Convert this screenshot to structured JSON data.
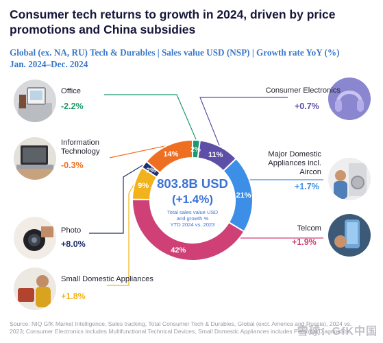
{
  "title": "Consumer tech returns to growth in 2024, driven by price promotions and China subsidies",
  "subtitle_line1": "Global (ex. NA, RU) Tech & Durables | Sales value USD (NSP) | Growth rate YoY (%)",
  "subtitle_line2": "Jan. 2024–Dec. 2024",
  "center": {
    "value": "803.8B USD",
    "growth": "(+1.4%)",
    "note1": "Total sales value USD",
    "note2": "and growth %",
    "note3": "YTD 2024 vs. 2023"
  },
  "categories": {
    "office": {
      "name": "Office",
      "growth": "-2.2%",
      "share_label": "2%"
    },
    "consumer_electronics": {
      "name": "Consumer Electronics",
      "growth": "+0.7%",
      "share_label": "11%"
    },
    "information_technology": {
      "name_line1": "Information",
      "name_line2": "Technology",
      "growth": "-0.3%",
      "share_label": "14%"
    },
    "major_domestic": {
      "name_line1": "Major Domestic",
      "name_line2": "Appliances incl.",
      "name_line3": "Aircon",
      "growth": "+1.7%",
      "share_label": "21%"
    },
    "photo": {
      "name": "Photo",
      "growth": "+8.0%",
      "share_label": "2%"
    },
    "telcom": {
      "name": "Telcom",
      "growth": "+1.9%",
      "share_label": "42%"
    },
    "small_domestic": {
      "name": "Small Domestic Appliances",
      "growth": "+1.8%",
      "share_label": "9%"
    }
  },
  "footer": {
    "line1": "Source: NIQ GfK Market Intelligence, Sales tracking, Total Consumer Tech & Durables, Global (excl. America and Russia), 2024 vs.",
    "line2": "2023; Consumer Electronics includes Multifunctional Technical Devices, Small Domestic Appliances includes Personal Diagnostics"
  },
  "watermark": "雪球：GfK中国",
  "chart_data": {
    "type": "pie",
    "title": "Consumer tech returns to growth in 2024, driven by price promotions and China subsidies",
    "center_label": "803.8B USD (+1.4%)",
    "slices": [
      {
        "name": "Office",
        "share": 2,
        "growth": -2.2,
        "color": "#1c9a6b"
      },
      {
        "name": "Consumer Electronics",
        "share": 11,
        "growth": 0.7,
        "color": "#5d4fa8"
      },
      {
        "name": "Major Domestic Appliances incl. Aircon",
        "share": 21,
        "growth": 1.7,
        "color": "#3d8ee6"
      },
      {
        "name": "Telcom",
        "share": 42,
        "growth": 1.9,
        "color": "#cf4077"
      },
      {
        "name": "Small Domestic Appliances",
        "share": 9,
        "growth": 1.8,
        "color": "#f2b21c"
      },
      {
        "name": "Photo",
        "share": 2,
        "growth": 8.0,
        "color": "#1e2f6e"
      },
      {
        "name": "Information Technology",
        "share": 14,
        "growth": -0.3,
        "color": "#ef6f22"
      }
    ]
  }
}
